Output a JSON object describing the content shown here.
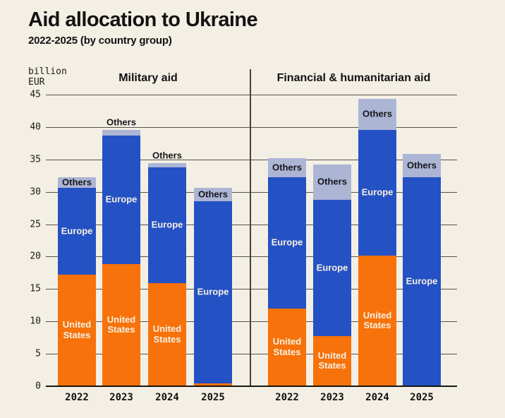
{
  "header": {
    "title": "Aid allocation to Ukraine",
    "subtitle": "2022-2025 (by country group)"
  },
  "axis_unit": {
    "line1": "billion",
    "line2": "EUR"
  },
  "colors": {
    "background": "#F4EFE5",
    "united_states": "#F7720A",
    "europe": "#2451C4",
    "others": "#ACB5D4",
    "gridline": "#55524A",
    "axis": "#17160F",
    "divider": "#45433C",
    "text_dark": "#121212",
    "text_light": "#F6F0E3"
  },
  "chart_data": {
    "type": "bar",
    "stacked": true,
    "title": "Aid allocation to Ukraine",
    "subtitle": "2022-2025 (by country group)",
    "ylabel": "billion EUR",
    "ylim": [
      0,
      45
    ],
    "ytick_step": 5,
    "grid": true,
    "legend": "inline-labels",
    "categories": [
      "2022",
      "2023",
      "2024",
      "2025"
    ],
    "panels": [
      {
        "title": "Military aid",
        "series": [
          {
            "key": "us",
            "name": "United States",
            "color": "#F7720A",
            "values": [
              17.2,
              18.9,
              15.9,
              0.4
            ]
          },
          {
            "key": "europe",
            "name": "Europe",
            "color": "#2451C4",
            "values": [
              13.4,
              19.8,
              17.9,
              28.2
            ]
          },
          {
            "key": "others",
            "name": "Others",
            "color": "#ACB5D4",
            "values": [
              1.7,
              0.9,
              0.6,
              2.0
            ]
          }
        ],
        "totals": [
          32.3,
          39.6,
          34.4,
          30.6
        ]
      },
      {
        "title": "Financial & humanitarian aid",
        "series": [
          {
            "key": "us",
            "name": "United States",
            "color": "#F7720A",
            "values": [
              12.0,
              7.7,
              20.2,
              0.0
            ]
          },
          {
            "key": "europe",
            "name": "Europe",
            "color": "#2451C4",
            "values": [
              20.2,
              21.1,
              19.4,
              32.3
            ]
          },
          {
            "key": "others",
            "name": "Others",
            "color": "#ACB5D4",
            "values": [
              3.0,
              5.4,
              4.8,
              3.6
            ]
          }
        ],
        "totals": [
          35.2,
          34.2,
          44.4,
          35.9
        ]
      }
    ]
  }
}
